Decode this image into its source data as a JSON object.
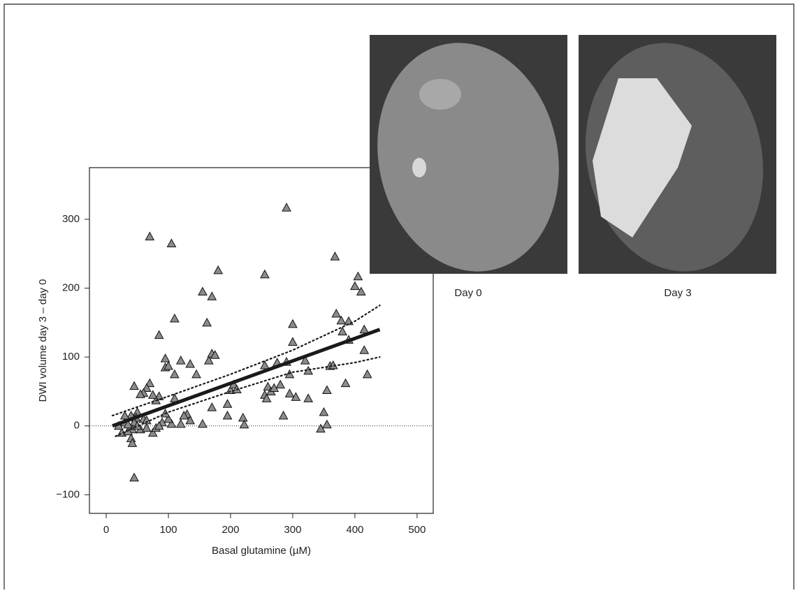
{
  "chart_data": {
    "type": "scatter",
    "x_label": "Basal glutamine (µM)",
    "y_label": "DWI volume day 3 – day 0",
    "xlim": [
      -27,
      526
    ],
    "ylim": [
      -127,
      375
    ],
    "xticks": [
      0,
      100,
      200,
      300,
      400,
      500
    ],
    "yticks": [
      {
        "value": -100,
        "label": "−100"
      },
      0,
      100,
      200,
      300
    ],
    "hline": 0,
    "series": [
      {
        "type": "scatter",
        "color": "#8c8c8c",
        "x": [
          70,
          105,
          290,
          180,
          255,
          368,
          405,
          400,
          410,
          155,
          170,
          110,
          162,
          300,
          370,
          378,
          390,
          380,
          415,
          390,
          300,
          85,
          165,
          170,
          175,
          95,
          95,
          100,
          120,
          135,
          110,
          145,
          255,
          275,
          290,
          320,
          325,
          295,
          280,
          260,
          265,
          255,
          270,
          258,
          295,
          305,
          325,
          355,
          360,
          365,
          385,
          420,
          415,
          345,
          350,
          355,
          285,
          220,
          222,
          195,
          195,
          200,
          205,
          210,
          170,
          155,
          130,
          135,
          120,
          105,
          100,
          95,
          90,
          85,
          80,
          75,
          70,
          65,
          60,
          55,
          45,
          50,
          48,
          45,
          42,
          40,
          42,
          45,
          30,
          25,
          35,
          55,
          60,
          65,
          75,
          80,
          85,
          40,
          50,
          30,
          20,
          35,
          65,
          110,
          125
        ],
        "values": [
          275,
          265,
          317,
          226,
          220,
          246,
          217,
          203,
          195,
          195,
          188,
          156,
          150,
          148,
          163,
          153,
          152,
          137,
          140,
          125,
          122,
          132,
          95,
          105,
          103,
          98,
          85,
          87,
          95,
          90,
          75,
          75,
          88,
          92,
          93,
          95,
          80,
          75,
          60,
          57,
          50,
          45,
          55,
          40,
          47,
          42,
          40,
          52,
          87,
          88,
          62,
          75,
          110,
          -4,
          20,
          2,
          15,
          12,
          2,
          15,
          32,
          52,
          60,
          53,
          27,
          3,
          17,
          8,
          3,
          3,
          10,
          18,
          5,
          43,
          37,
          45,
          62,
          55,
          48,
          46,
          58,
          20,
          12,
          5,
          -5,
          -18,
          -25,
          -75,
          5,
          -10,
          -8,
          -5,
          10,
          8,
          -10,
          -3,
          0,
          15,
          0,
          15,
          0,
          2,
          -3,
          40,
          15
        ]
      },
      {
        "type": "line",
        "color": "#1a1a1a",
        "x": [
          10,
          440
        ],
        "values": [
          0,
          140
        ]
      },
      {
        "type": "dotted",
        "color": "#1a1a1a",
        "x": [
          10,
          100,
          200,
          300,
          400,
          440
        ],
        "values": [
          15,
          43,
          75,
          110,
          152,
          175
        ]
      },
      {
        "type": "dotted",
        "color": "#1a1a1a",
        "x": [
          15,
          100,
          200,
          300,
          400,
          440
        ],
        "values": [
          -15,
          20,
          50,
          78,
          92,
          100
        ]
      }
    ]
  },
  "panels": [
    {
      "caption": "Day 0"
    },
    {
      "caption": "Day 3"
    }
  ]
}
